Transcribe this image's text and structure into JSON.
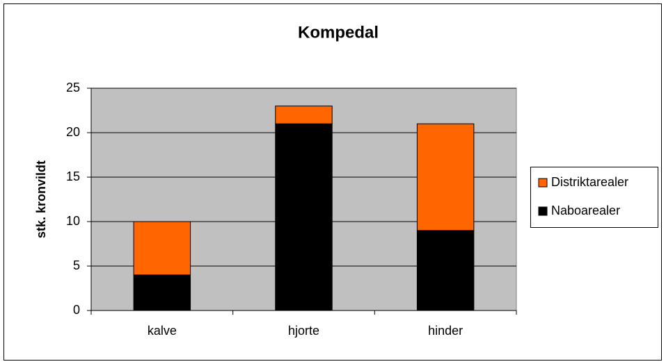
{
  "chart_data": {
    "type": "stacked_bar",
    "title": "Kompedal",
    "ylabel": "stk. kronvildt",
    "categories": [
      "kalve",
      "hjorte",
      "hinder"
    ],
    "series": [
      {
        "name": "Naboarealer",
        "color": "#000000",
        "values": [
          4,
          21,
          9
        ]
      },
      {
        "name": "Distriktarealer",
        "color": "#ff6600",
        "values": [
          6,
          2,
          12
        ]
      }
    ],
    "ylim": [
      0,
      25
    ],
    "yticks": [
      0,
      5,
      10,
      15,
      20,
      25
    ],
    "grid": true,
    "legend": "right"
  }
}
